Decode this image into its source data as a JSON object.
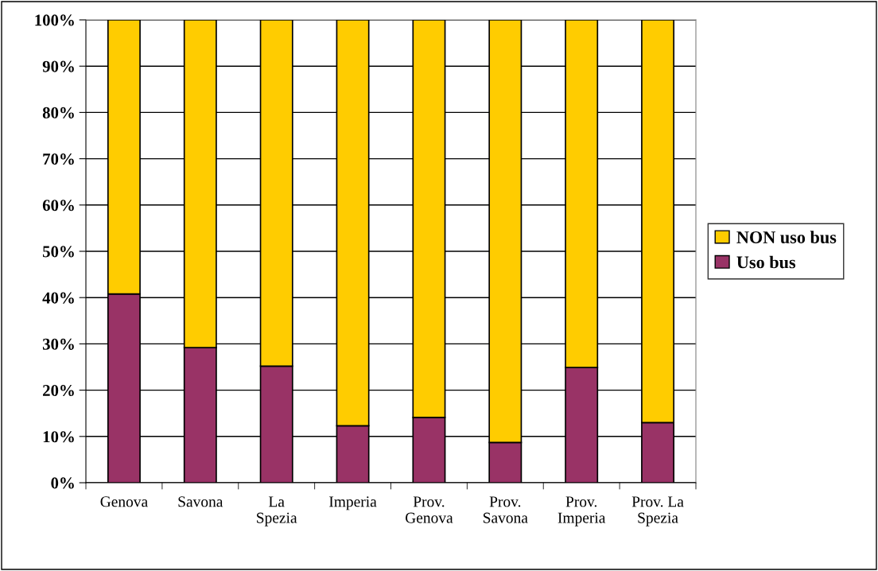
{
  "chart_data": {
    "type": "bar",
    "stacked": true,
    "categories": [
      "Genova",
      "Savona",
      "La\nSpezia",
      "Imperia",
      "Prov.\nGenova",
      "Prov.\nSavona",
      "Prov.\nImperia",
      "Prov. La\nSpezia"
    ],
    "series": [
      {
        "name": "Uso bus",
        "color": "#993366",
        "values": [
          40.8,
          29.2,
          25.2,
          12.3,
          14.1,
          8.7,
          24.9,
          13.0
        ]
      },
      {
        "name": "NON uso bus",
        "color": "#ffcc00",
        "values": [
          59.2,
          70.8,
          74.8,
          87.7,
          85.9,
          91.3,
          75.1,
          87.0
        ]
      }
    ],
    "ylim": [
      0,
      100
    ],
    "yticks": [
      {
        "value": 0,
        "label": "0%"
      },
      {
        "value": 10,
        "label": "10%"
      },
      {
        "value": 20,
        "label": "20%"
      },
      {
        "value": 30,
        "label": "30%"
      },
      {
        "value": 40,
        "label": "40%"
      },
      {
        "value": 50,
        "label": "50%"
      },
      {
        "value": 60,
        "label": "60%"
      },
      {
        "value": 70,
        "label": "70%"
      },
      {
        "value": 80,
        "label": "80%"
      },
      {
        "value": 90,
        "label": "90%"
      },
      {
        "value": 100,
        "label": "100%"
      }
    ],
    "grid": "y",
    "legend": "right"
  }
}
